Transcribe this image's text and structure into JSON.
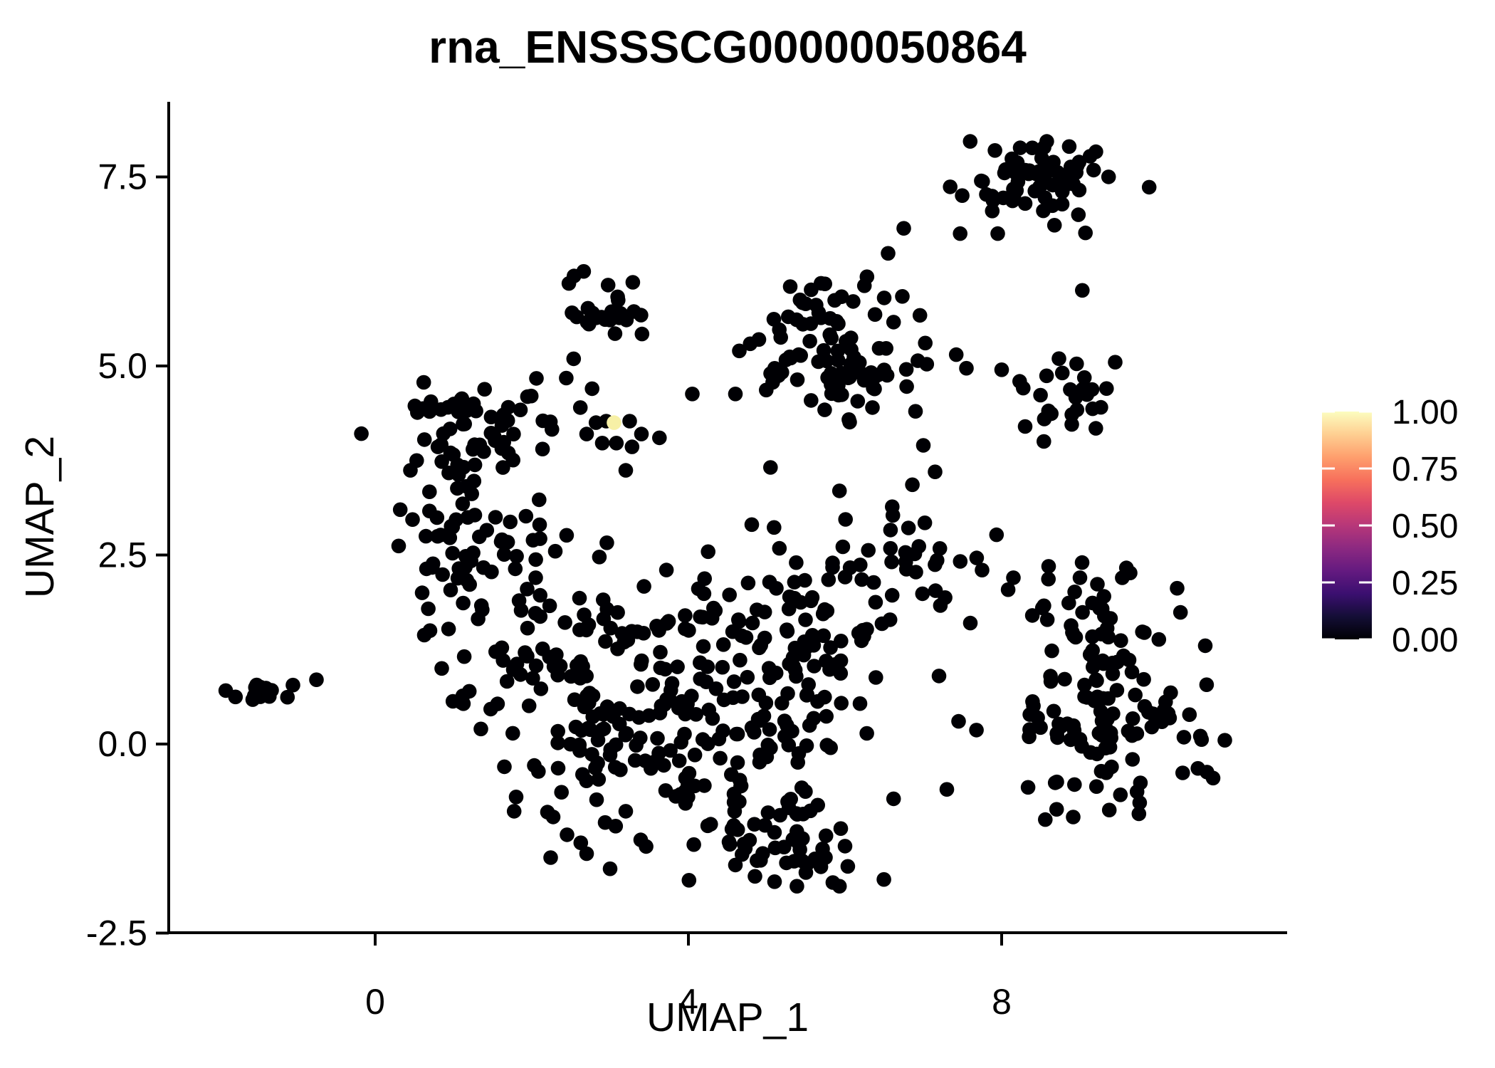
{
  "title": "rna_ENSSSCG00000050864",
  "axes": {
    "x": {
      "label": "UMAP_1",
      "ticks": [
        {
          "label": "0",
          "value": 0
        },
        {
          "label": "4",
          "value": 4
        },
        {
          "label": "8",
          "value": 8
        }
      ]
    },
    "y": {
      "label": "UMAP_2",
      "ticks": [
        {
          "label": "-2.5",
          "value": -2.5
        },
        {
          "label": "0.0",
          "value": 0.0
        },
        {
          "label": "2.5",
          "value": 2.5
        },
        {
          "label": "5.0",
          "value": 5.0
        },
        {
          "label": "7.5",
          "value": 7.5
        }
      ]
    }
  },
  "legend": {
    "labels": [
      "1.00",
      "0.75",
      "0.50",
      "0.25",
      "0.00"
    ],
    "values": [
      1.0,
      0.75,
      0.5,
      0.25,
      0.0
    ],
    "palette_name": "magma",
    "palette": [
      "#000004",
      "#140E36",
      "#3B0F70",
      "#641A80",
      "#8C2981",
      "#B73779",
      "#DE4968",
      "#F7705C",
      "#FE9F6D",
      "#FECF92",
      "#FCFDBF"
    ],
    "tick_color": "#FFFFFF"
  },
  "chart_data": {
    "type": "scatter",
    "title": "rna_ENSSSCG00000050864",
    "xlabel": "UMAP_1",
    "ylabel": "UMAP_2",
    "xlim": [
      -2.64,
      11.65
    ],
    "ylim": [
      -2.55,
      8.5
    ],
    "x_ticks": [
      0,
      4,
      8
    ],
    "y_ticks": [
      -2.5,
      0.0,
      2.5,
      5.0,
      7.5
    ],
    "grid": false,
    "legend_position": "right",
    "color_scale": {
      "min": 0.0,
      "max": 1.0,
      "palette": "magma"
    },
    "point_color": "#000004",
    "point_radius_px": 10.3,
    "seed": 20240864,
    "highlight_point": {
      "x": 3.05,
      "y": 4.25,
      "value": 1.0,
      "color": "#F7F0A6"
    },
    "clusters": [
      {
        "x": 8.55,
        "y": 7.55,
        "sx": 0.42,
        "sy": 0.22,
        "n": 55
      },
      {
        "x": 8.05,
        "y": 7.35,
        "sx": 0.22,
        "sy": 0.14,
        "n": 10
      },
      {
        "x": 2.95,
        "y": 5.72,
        "sx": 0.27,
        "sy": 0.25,
        "n": 28
      },
      {
        "x": 5.95,
        "y": 5.05,
        "sx": 0.5,
        "sy": 0.4,
        "n": 80
      },
      {
        "x": 5.8,
        "y": 5.85,
        "sx": 0.28,
        "sy": 0.16,
        "n": 10
      },
      {
        "x": 8.85,
        "y": 4.6,
        "sx": 0.32,
        "sy": 0.22,
        "n": 24
      },
      {
        "x": 1.2,
        "y": 4.0,
        "sx": 0.5,
        "sy": 0.38,
        "n": 65
      },
      {
        "x": 1.35,
        "y": 2.65,
        "sx": 0.5,
        "sy": 0.5,
        "n": 50
      },
      {
        "x": 1.75,
        "y": 1.15,
        "sx": 0.55,
        "sy": 0.55,
        "n": 45
      },
      {
        "x": -1.55,
        "y": 0.63,
        "sx": 0.17,
        "sy": 0.12,
        "n": 14
      },
      {
        "x": 3.35,
        "y": 1.1,
        "sx": 0.65,
        "sy": 0.62,
        "n": 60
      },
      {
        "x": 4.7,
        "y": 0.95,
        "sx": 0.75,
        "sy": 0.7,
        "n": 70
      },
      {
        "x": 5.75,
        "y": 1.4,
        "sx": 0.55,
        "sy": 0.68,
        "n": 60
      },
      {
        "x": 4.3,
        "y": -0.55,
        "sx": 0.85,
        "sy": 0.5,
        "n": 65
      },
      {
        "x": 5.2,
        "y": -1.3,
        "sx": 0.5,
        "sy": 0.28,
        "n": 38
      },
      {
        "x": 2.7,
        "y": 0.1,
        "sx": 0.5,
        "sy": 0.55,
        "n": 42
      },
      {
        "x": 6.9,
        "y": 2.5,
        "sx": 0.45,
        "sy": 0.55,
        "n": 30
      },
      {
        "x": 9.3,
        "y": 0.5,
        "sx": 0.6,
        "sy": 0.62,
        "n": 120
      },
      {
        "x": 9.2,
        "y": 1.9,
        "sx": 0.4,
        "sy": 0.28,
        "n": 20
      }
    ],
    "singles": [
      [
        7.47,
        6.75
      ],
      [
        7.88,
        7.05
      ],
      [
        7.95,
        6.75
      ],
      [
        8.98,
        7.0
      ],
      [
        9.07,
        6.76
      ],
      [
        9.03,
        6.0
      ],
      [
        6.28,
        6.18
      ],
      [
        6.55,
        6.49
      ],
      [
        6.75,
        6.82
      ],
      [
        7.42,
        5.15
      ],
      [
        7.55,
        4.97
      ],
      [
        6.93,
        5.07
      ],
      [
        4.05,
        4.63
      ],
      [
        4.6,
        4.63
      ],
      [
        3.63,
        4.05
      ],
      [
        3.2,
        3.62
      ],
      [
        2.44,
        4.84
      ],
      [
        2.77,
        4.7
      ],
      [
        2.95,
        4.27
      ],
      [
        2.62,
        4.45
      ],
      [
        2.82,
        4.25
      ],
      [
        3.25,
        4.27
      ],
      [
        3.4,
        4.1
      ],
      [
        2.9,
        3.98
      ],
      [
        3.28,
        3.93
      ],
      [
        3.08,
        3.98
      ],
      [
        2.7,
        4.1
      ],
      [
        -1.05,
        0.78
      ],
      [
        -1.12,
        0.62
      ],
      [
        -0.75,
        0.85
      ],
      [
        0.32,
        3.1
      ],
      [
        0.3,
        2.62
      ],
      [
        0.45,
        3.62
      ],
      [
        2.1,
        2.9
      ],
      [
        2.3,
        2.55
      ],
      [
        2.05,
        2.2
      ],
      [
        4.9,
        5.35
      ],
      [
        4.65,
        5.2
      ],
      [
        5.05,
        4.9
      ],
      [
        5.3,
        6.05
      ],
      [
        6.5,
        5.9
      ],
      [
        6.62,
        5.58
      ],
      [
        6.35,
        4.45
      ],
      [
        6.9,
        4.4
      ],
      [
        7.0,
        3.95
      ],
      [
        7.15,
        3.6
      ],
      [
        8.0,
        4.95
      ],
      [
        9.45,
        5.05
      ],
      [
        8.3,
        4.2
      ],
      [
        7.2,
        0.9
      ],
      [
        7.45,
        0.3
      ],
      [
        7.3,
        -0.6
      ],
      [
        7.6,
        1.6
      ],
      [
        7.75,
        2.3
      ],
      [
        10.85,
        0.05
      ],
      [
        10.6,
        1.3
      ],
      [
        10.7,
        -0.45
      ],
      [
        8.15,
        2.2
      ],
      [
        8.6,
        2.35
      ],
      [
        9.0,
        2.2
      ],
      [
        4.6,
        -1.6
      ],
      [
        4.85,
        -1.75
      ],
      [
        5.1,
        -1.82
      ],
      [
        5.5,
        -1.7
      ],
      [
        5.35,
        -1.55
      ],
      [
        5.75,
        -1.5
      ],
      [
        6.0,
        -1.35
      ],
      [
        2.2,
        -0.9
      ],
      [
        2.45,
        -1.2
      ],
      [
        2.7,
        -1.45
      ],
      [
        3.0,
        -1.65
      ],
      [
        1.65,
        -0.3
      ],
      [
        1.8,
        -0.7
      ],
      [
        1.35,
        0.2
      ],
      [
        1.1,
        0.55
      ],
      [
        0.85,
        1.0
      ],
      [
        0.7,
        1.5
      ],
      [
        0.6,
        2.0
      ]
    ]
  }
}
